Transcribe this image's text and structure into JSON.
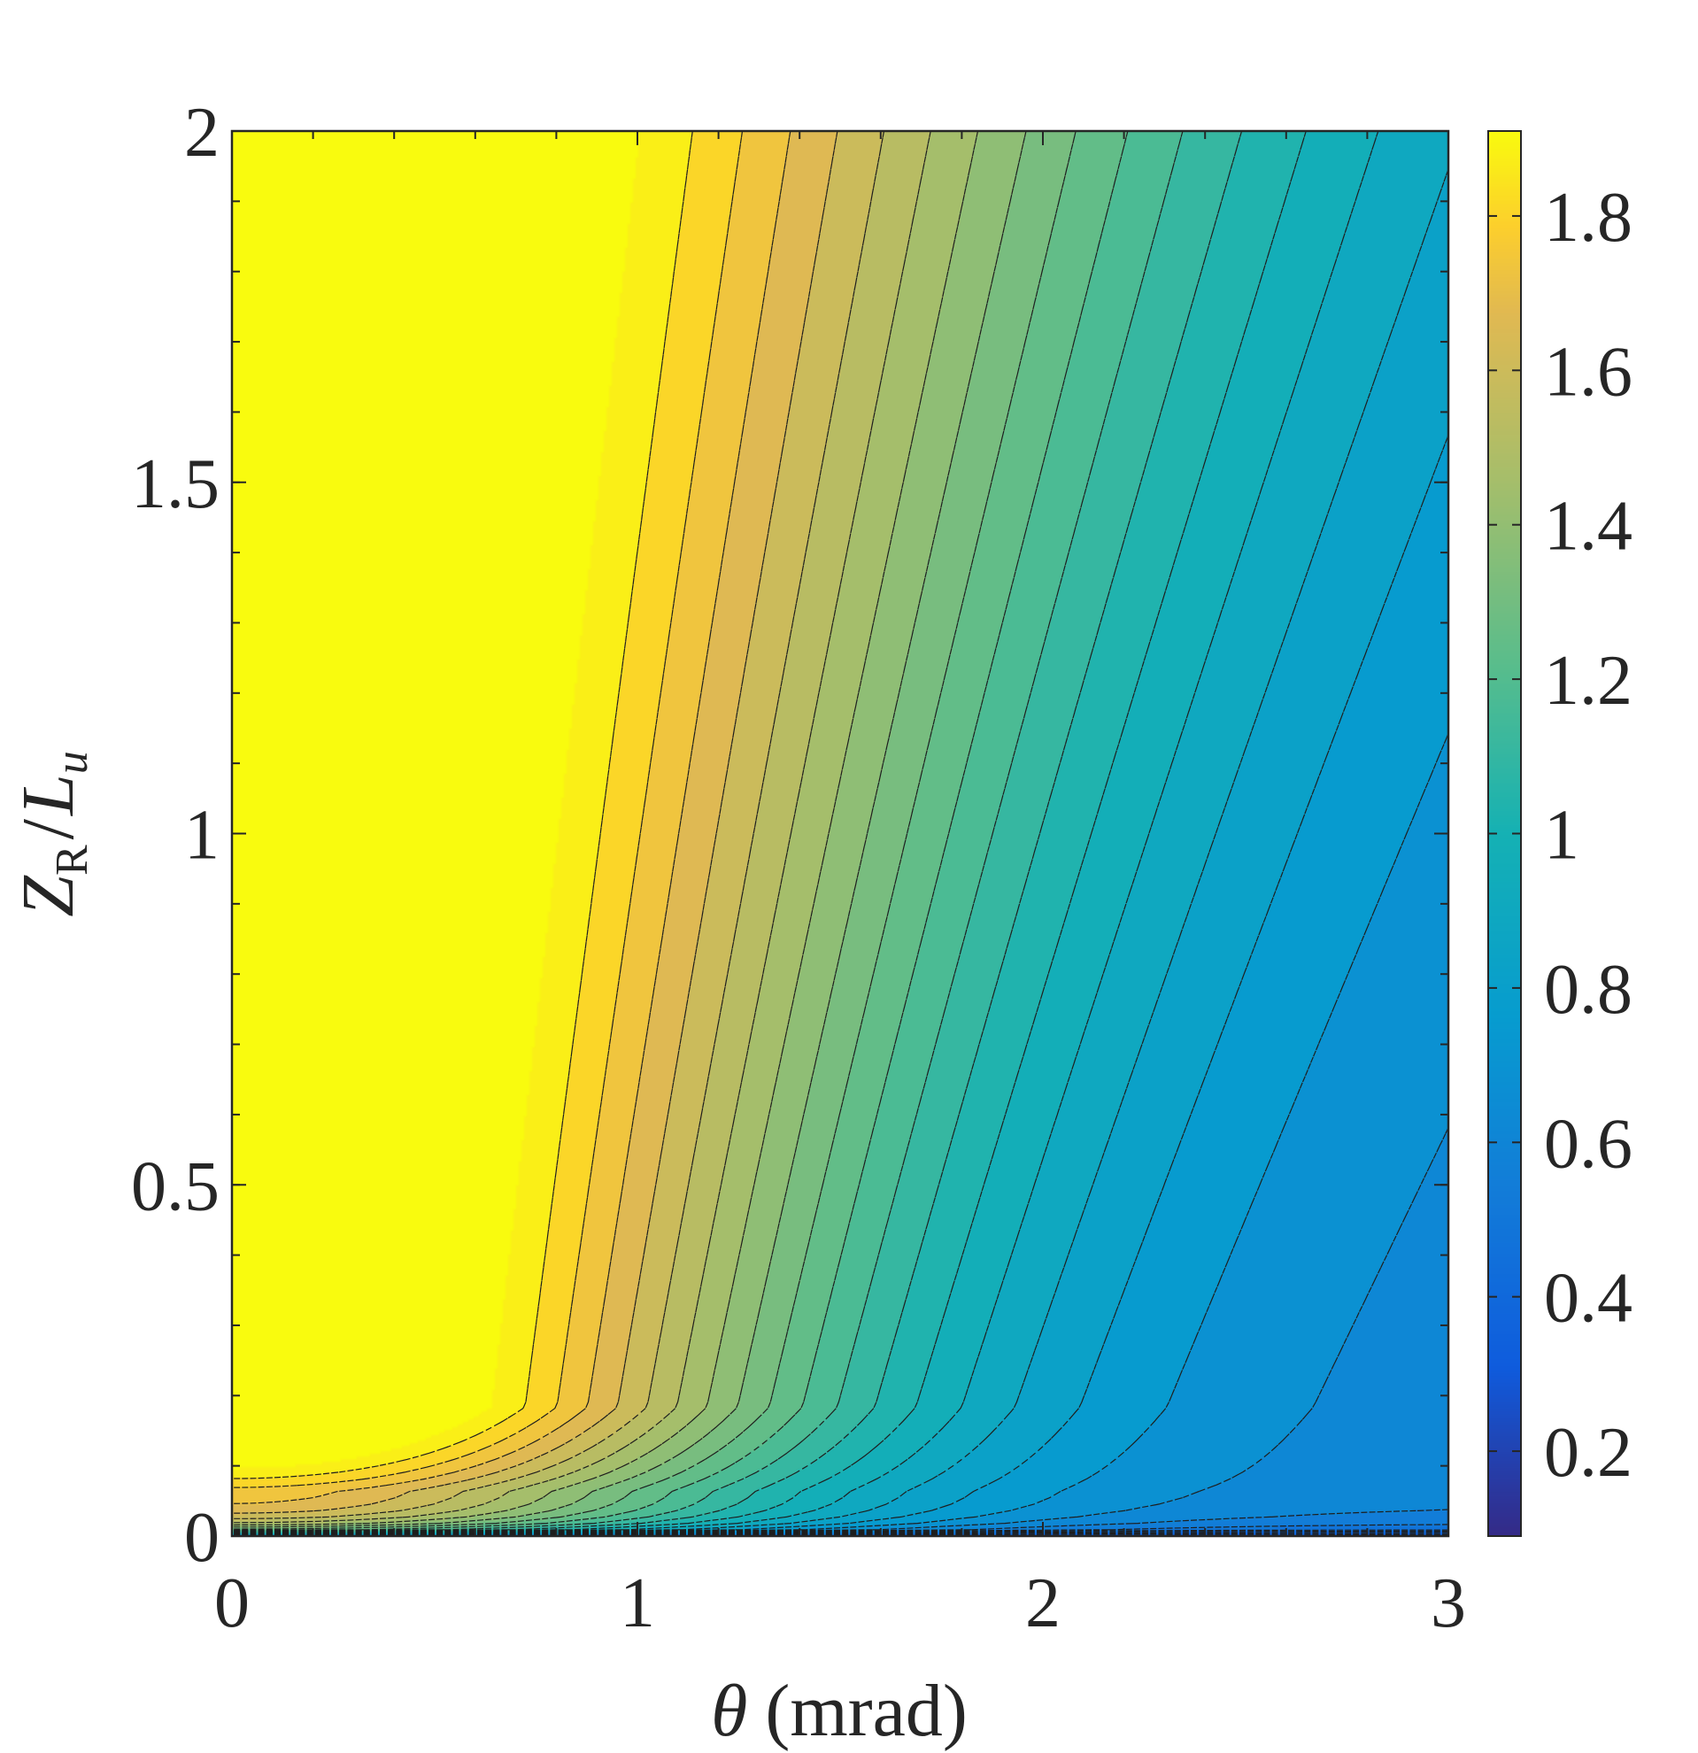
{
  "chart_data": {
    "type": "contour",
    "xlabel": {
      "symbol": "θ",
      "unit": "(mrad)"
    },
    "ylabel": {
      "symbol": "Z",
      "subscript": "R",
      "slash": "/",
      "symbol2": "L",
      "subscript2": "u"
    },
    "xlim": [
      0,
      3
    ],
    "ylim": [
      0,
      2
    ],
    "x_ticks": [
      "0",
      "1",
      "2",
      "3"
    ],
    "y_ticks": [
      "0",
      "0.5",
      "1",
      "1.5",
      "2"
    ],
    "colorbar": {
      "colormap": "parula",
      "range": [
        0.09,
        1.91
      ],
      "ticks": [
        "0.2",
        "0.4",
        "0.6",
        "0.8",
        "1",
        "1.2",
        "1.4",
        "1.6",
        "1.8"
      ]
    },
    "contour_line_style": "dashed",
    "peak": {
      "x": 0.25,
      "y": 0.35,
      "value": 1.88
    },
    "right_edge_value": 0.64,
    "grid": false
  }
}
